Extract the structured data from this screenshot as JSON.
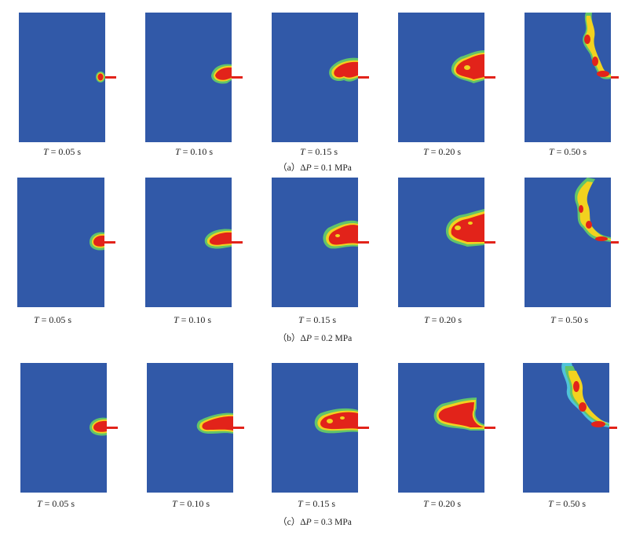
{
  "rows": [
    {
      "caption_prefix": "（a）",
      "delta_symbol": "Δ",
      "var": "P",
      "caption_value": " = 0.1 MPa",
      "panels": [
        {
          "time_var": "T",
          "time_value": " = 0.05 s"
        },
        {
          "time_var": "T",
          "time_value": " = 0.10 s"
        },
        {
          "time_var": "T",
          "time_value": " = 0.15 s"
        },
        {
          "time_var": "T",
          "time_value": " = 0.20 s"
        },
        {
          "time_var": "T",
          "time_value": " = 0.50 s"
        }
      ]
    },
    {
      "caption_prefix": "（b）",
      "delta_symbol": "Δ",
      "var": "P",
      "caption_value": " = 0.2 MPa",
      "panels": [
        {
          "time_var": "T",
          "time_value": " = 0.05 s"
        },
        {
          "time_var": "T",
          "time_value": " = 0.10 s"
        },
        {
          "time_var": "T",
          "time_value": " = 0.15 s"
        },
        {
          "time_var": "T",
          "time_value": " = 0.20 s"
        },
        {
          "time_var": "T",
          "time_value": " = 0.50 s"
        }
      ]
    },
    {
      "caption_prefix": "（c）",
      "delta_symbol": "Δ",
      "var": "P",
      "caption_value": " = 0.3 MPa",
      "panels": [
        {
          "time_var": "T",
          "time_value": " = 0.05 s"
        },
        {
          "time_var": "T",
          "time_value": " = 0.10 s"
        },
        {
          "time_var": "T",
          "time_value": " = 0.15 s"
        },
        {
          "time_var": "T",
          "time_value": " = 0.20 s"
        },
        {
          "time_var": "T",
          "time_value": " = 0.50 s"
        }
      ]
    }
  ],
  "colors": {
    "background_field": "#3159a8",
    "plume_core": "#e2231a",
    "plume_edge_yellow": "#f2d21f",
    "plume_edge_green": "#62c46a",
    "plume_edge_cyan": "#4fc3d9",
    "nozzle": "#e2231a"
  }
}
